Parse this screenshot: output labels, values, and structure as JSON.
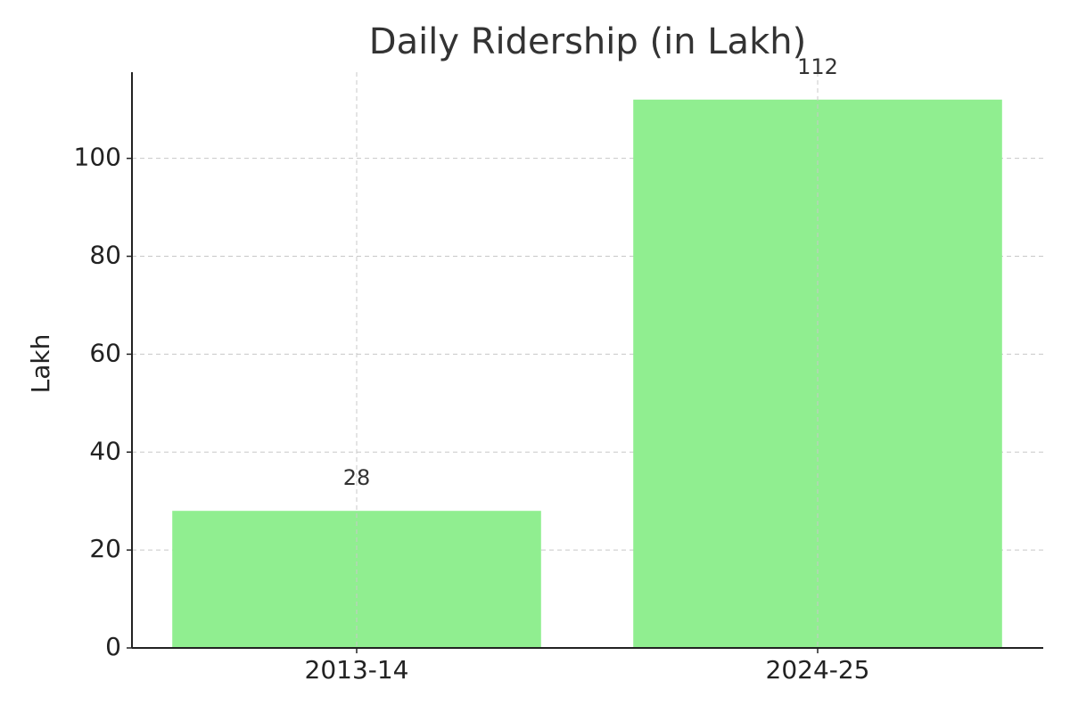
{
  "chart_data": {
    "type": "bar",
    "title": "Daily Ridership (in Lakh)",
    "y_label": "Lakh",
    "categories": [
      "2013-14",
      "2024-25"
    ],
    "values": [
      28,
      112
    ],
    "color": "#90ee90",
    "ylim": [
      0,
      117.6
    ],
    "yticks": [
      0,
      20,
      40,
      60,
      80,
      100
    ],
    "grid": true,
    "data_labels": true
  }
}
